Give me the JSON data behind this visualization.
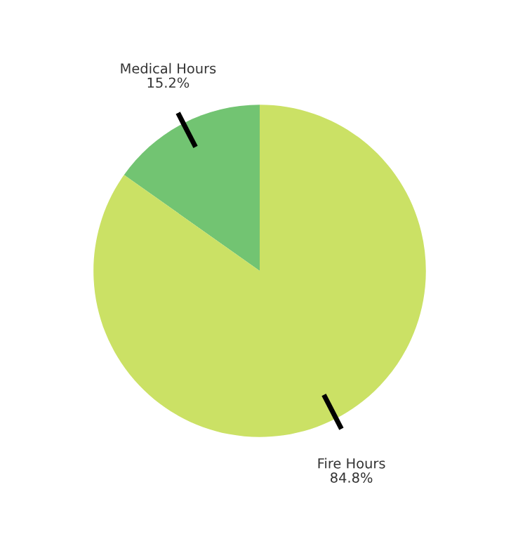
{
  "chart_data": {
    "type": "pie",
    "categories": [
      "Medical Hours",
      "Fire Hours"
    ],
    "values": [
      15.2,
      84.8
    ],
    "colors": [
      "#72c472",
      "#cbe165"
    ],
    "value_labels": [
      "15.2%",
      "84.8%"
    ],
    "legend": false
  }
}
